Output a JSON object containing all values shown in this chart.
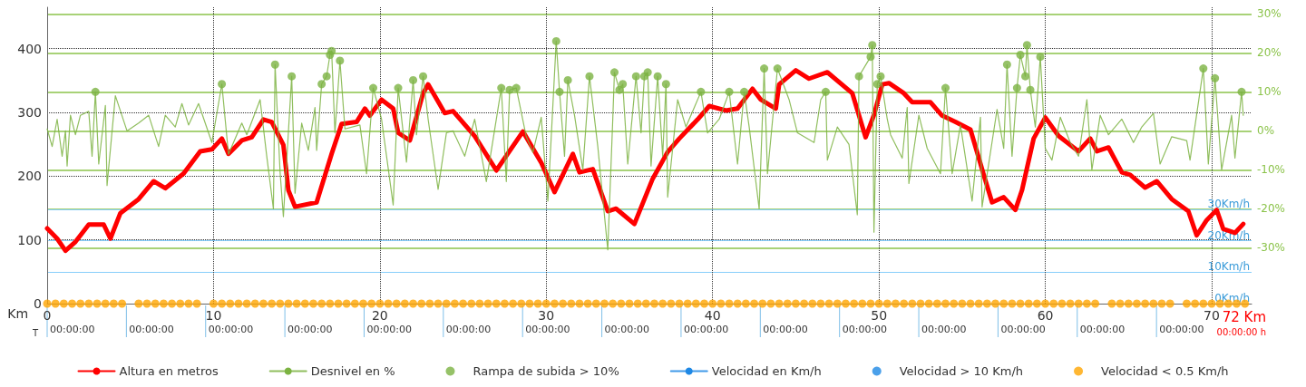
{
  "chart_data": {
    "type": "line",
    "xlabel": "Km",
    "x2label": "T",
    "xlim": [
      0,
      72.4
    ],
    "xticks": [
      0,
      10,
      20,
      30,
      40,
      50,
      60,
      70
    ],
    "ylim": [
      0,
      465
    ],
    "yticks": [
      0,
      100,
      200,
      300,
      400
    ],
    "y2lim": [
      -44.3,
      31.7
    ],
    "y2ticks": [
      {
        "value": -30,
        "label": "-30%"
      },
      {
        "value": -20,
        "label": "-20%"
      },
      {
        "value": -10,
        "label": "-10%"
      },
      {
        "value": 0,
        "label": "0%"
      },
      {
        "value": 10,
        "label": "10%"
      },
      {
        "value": 20,
        "label": "20%"
      },
      {
        "value": 30,
        "label": "30%"
      }
    ],
    "y3lim": [
      0,
      94.3
    ],
    "y3ticks": [
      {
        "value": 0,
        "label": "0Km/h"
      },
      {
        "value": 10,
        "label": "10Km/h"
      },
      {
        "value": 20,
        "label": "20Km/h"
      },
      {
        "value": 30,
        "label": "30Km/h"
      }
    ],
    "grid": true,
    "legend": "bottom",
    "annotations": [
      "72 Km",
      "00:00:00 h",
      "00:00:00",
      "00:00:00",
      "00:00:00",
      "00:00:00",
      "00:00:00",
      "00:00:00",
      "00:00:00",
      "00:00:00",
      "00:00:00",
      "00:00:00",
      "00:00:00",
      "00:00:00",
      "00:00:00",
      "00:00:00",
      "00:00:00"
    ],
    "series": [
      {
        "name": "Altura en metros",
        "color": "#ff0000",
        "x": [
          0,
          0.6,
          1.1,
          1.7,
          2.5,
          3.4,
          3.8,
          4.4,
          5.5,
          6.4,
          7.1,
          8.2,
          9.2,
          9.9,
          10.5,
          10.9,
          11.7,
          12.3,
          13.0,
          13.5,
          14.2,
          14.5,
          14.9,
          16.2,
          17.1,
          17.7,
          18.6,
          19.1,
          19.4,
          20.1,
          20.8,
          21.1,
          21.8,
          22.6,
          22.9,
          23.9,
          24.4,
          25.7,
          27.0,
          28.6,
          29.7,
          30.5,
          31.6,
          32.0,
          32.8,
          33.7,
          34.2,
          35.3,
          36.4,
          37.3,
          38.0,
          39.1,
          39.8,
          40.8,
          41.5,
          42.4,
          42.9,
          43.8,
          44.0,
          45.0,
          45.8,
          46.9,
          48.4,
          49.2,
          49.7,
          50.2,
          50.6,
          51.5,
          52.0,
          53.1,
          53.8,
          54.6,
          55.5,
          56.3,
          56.8,
          57.5,
          58.2,
          58.6,
          59.3,
          60.0,
          60.8,
          62.0,
          62.7,
          63.1,
          63.8,
          64.6,
          65.1,
          66.0,
          66.7,
          67.6,
          68.6,
          69.1,
          69.7,
          70.3,
          70.7,
          71.4,
          71.9
        ],
        "values": [
          118,
          102,
          83,
          97,
          124,
          124,
          102,
          142,
          164,
          192,
          181,
          204,
          239,
          242,
          259,
          235,
          256,
          261,
          289,
          285,
          249,
          178,
          152,
          159,
          235,
          282,
          285,
          306,
          295,
          320,
          306,
          268,
          256,
          330,
          344,
          299,
          302,
          263,
          209,
          270,
          221,
          175,
          235,
          206,
          211,
          145,
          149,
          125,
          196,
          238,
          259,
          289,
          310,
          303,
          306,
          337,
          320,
          306,
          344,
          366,
          353,
          363,
          330,
          261,
          296,
          344,
          346,
          330,
          316,
          316,
          295,
          285,
          273,
          202,
          159,
          167,
          147,
          178,
          259,
          292,
          263,
          239,
          259,
          239,
          245,
          206,
          202,
          182,
          192,
          164,
          145,
          107,
          131,
          147,
          117,
          111,
          125
        ]
      },
      {
        "name": "Desnivel en %",
        "axis": "y2",
        "color": "#7cb342",
        "x": [
          0,
          0.3,
          0.6,
          0.9,
          1.1,
          1.2,
          1.4,
          1.7,
          2.0,
          2.5,
          2.7,
          2.9,
          3.1,
          3.5,
          3.6,
          4.1,
          4.8,
          5.5,
          6.1,
          6.7,
          7.1,
          7.7,
          8.1,
          8.5,
          9.1,
          9.9,
          10.5,
          10.9,
          11.7,
          12.0,
          12.8,
          13.2,
          13.6,
          13.7,
          14.0,
          14.2,
          14.7,
          14.9,
          15.3,
          15.7,
          16.1,
          16.2,
          16.5,
          16.8,
          17.0,
          17.1,
          17.3,
          17.6,
          17.9,
          18.8,
          19.2,
          19.6,
          20.1,
          20.8,
          21.1,
          21.6,
          22.0,
          22.2,
          22.6,
          22.9,
          23.5,
          24.0,
          24.4,
          25.1,
          25.7,
          26.4,
          27.3,
          27.6,
          27.8,
          28.2,
          28.8,
          29.2,
          29.7,
          30.1,
          30.6,
          30.8,
          31.1,
          31.3,
          31.7,
          32.2,
          32.6,
          33.1,
          33.7,
          34.0,
          34.1,
          34.4,
          34.6,
          34.9,
          35.4,
          35.7,
          35.9,
          36.1,
          36.3,
          36.7,
          37.0,
          37.2,
          37.3,
          37.9,
          38.4,
          39.3,
          39.7,
          40.4,
          41.0,
          41.5,
          41.9,
          42.2,
          42.8,
          43.1,
          43.3,
          43.9,
          44.6,
          45.1,
          46.1,
          46.5,
          46.8,
          46.9,
          47.5,
          48.2,
          48.7,
          48.8,
          49.5,
          49.6,
          49.7,
          49.9,
          50.1,
          50.5,
          50.7,
          51.4,
          51.7,
          51.8,
          52.4,
          52.9,
          53.7,
          54.0,
          54.4,
          54.9,
          55.6,
          56.1,
          56.2,
          57.1,
          57.5,
          57.7,
          58.0,
          58.3,
          58.5,
          58.8,
          58.9,
          59.1,
          59.4,
          59.7,
          60.0,
          60.4,
          60.9,
          61.5,
          62.0,
          62.5,
          62.8,
          63.3,
          63.8,
          64.6,
          65.3,
          65.8,
          66.5,
          66.9,
          67.6,
          68.5,
          68.7,
          69.5,
          69.8,
          70.2,
          70.6,
          71.2,
          71.4,
          71.8,
          71.9
        ],
        "values": [
          0.5,
          -4,
          3,
          -6.5,
          0,
          -9,
          4,
          -1,
          4,
          5,
          -6.5,
          10,
          -8.5,
          6.5,
          -14,
          9,
          0,
          2,
          4,
          -4,
          4,
          1,
          7,
          1.5,
          7,
          -3,
          12,
          -6,
          2,
          -1,
          8,
          -6.5,
          -20,
          17,
          -10.5,
          -22,
          14,
          -16,
          2,
          -5,
          6,
          -5,
          12,
          14,
          19.5,
          20.5,
          -0.5,
          18,
          0.5,
          1.5,
          -11,
          11,
          3,
          -19,
          11,
          -8,
          13,
          -1,
          14,
          3,
          -15,
          -0.5,
          0,
          -6.5,
          3,
          -13,
          11,
          -13,
          10.5,
          11,
          -1.5,
          -5.5,
          3.5,
          -18,
          23,
          10,
          -6.5,
          13,
          4,
          -10,
          14,
          -4,
          -30.5,
          3,
          15,
          10.5,
          12,
          -8.5,
          14,
          -0.5,
          14,
          15,
          -9,
          14,
          -6.5,
          12,
          -17,
          8,
          1,
          10,
          -0.5,
          3,
          10,
          -8.5,
          10,
          1,
          -20,
          16,
          -11,
          16,
          8,
          -0.5,
          -3,
          8,
          10,
          -7.5,
          1,
          -3.5,
          -21.5,
          14,
          19,
          22,
          -26,
          12,
          14,
          3,
          -1,
          -7,
          6,
          -13.5,
          4,
          -4.5,
          -11,
          11,
          -11,
          1.5,
          -18,
          3.5,
          -19.5,
          5.5,
          -4.5,
          17,
          -6.5,
          11,
          19.5,
          14,
          22,
          10.5,
          1,
          19,
          -4.5,
          -7.5,
          3.5,
          -3,
          -6.5,
          8,
          -10,
          4,
          -1,
          3,
          -3,
          1,
          4.5,
          -8.5,
          -1.5,
          -2.5,
          -7.5,
          16,
          -8.5,
          13.5,
          -10,
          4,
          -7,
          10,
          4
        ]
      },
      {
        "name": "Rampa de subida > 10%",
        "type": "scatter",
        "axis": "y2",
        "color": "#7cb342",
        "x": [
          2.9,
          10.5,
          13.7,
          14.7,
          16.5,
          16.8,
          17.0,
          17.1,
          17.6,
          19.6,
          21.1,
          22.0,
          22.6,
          27.3,
          27.8,
          28.2,
          30.6,
          30.8,
          31.3,
          32.6,
          34.1,
          34.4,
          34.6,
          35.4,
          35.9,
          36.1,
          36.7,
          37.2,
          39.3,
          41.0,
          41.9,
          43.1,
          43.9,
          46.8,
          48.8,
          49.5,
          49.6,
          49.9,
          50.1,
          54.0,
          57.7,
          58.3,
          58.5,
          58.8,
          58.9,
          59.1,
          59.7,
          69.5,
          70.2,
          71.8
        ],
        "values": [
          10,
          12,
          17,
          14,
          12,
          14,
          19.5,
          20.5,
          18,
          11,
          11,
          13,
          14,
          11,
          10.5,
          11,
          23,
          10,
          13,
          14,
          15,
          10.5,
          12,
          14,
          14,
          15,
          14,
          12,
          10,
          10,
          10,
          16,
          16,
          10,
          14,
          19,
          22,
          12,
          14,
          11,
          17,
          11,
          19.5,
          14,
          22,
          10.5,
          19,
          16,
          13.5,
          10
        ]
      },
      {
        "name": "Velocidad en Km/h",
        "type": "line",
        "axis": "y3",
        "color": "#1e88e5"
      },
      {
        "name": "Velocidad > 10 Km/h",
        "type": "scatter",
        "axis": "y3",
        "color": "#1e88e5"
      },
      {
        "name": "Velocidad < 0.5 Km/h",
        "type": "scatter",
        "axis": "y3",
        "color": "#ffa500",
        "x": [
          0,
          0.5,
          1,
          1.5,
          2,
          2.5,
          3,
          3.5,
          4,
          4.5,
          5.5,
          6,
          6.5,
          7,
          7.5,
          8,
          8.5,
          9,
          10,
          10.5,
          11,
          11.5,
          12,
          12.5,
          13,
          13.5,
          14,
          14.5,
          15,
          15.5,
          16,
          16.5,
          17,
          17.5,
          18,
          18.5,
          19,
          19.5,
          20,
          20.5,
          21,
          21.5,
          22,
          22.5,
          23,
          23.5,
          24,
          24.5,
          25,
          25.5,
          26,
          26.5,
          27,
          27.5,
          28,
          28.5,
          29,
          29.5,
          30,
          30.5,
          31,
          31.5,
          32,
          32.5,
          33,
          33.5,
          34,
          34.5,
          35,
          35.5,
          36,
          36.5,
          37,
          37.5,
          38,
          38.5,
          39,
          39.5,
          40,
          40.5,
          41,
          41.5,
          42,
          42.5,
          43,
          43.5,
          44,
          44.5,
          45,
          45.5,
          46,
          46.5,
          47,
          47.5,
          48,
          48.5,
          49,
          49.5,
          50,
          50.5,
          51,
          51.5,
          52,
          52.5,
          53,
          53.5,
          54,
          54.5,
          55,
          55.5,
          56,
          56.5,
          57,
          57.5,
          58,
          58.5,
          59,
          59.5,
          60,
          60.5,
          61,
          61.5,
          62,
          62.5,
          63,
          64,
          64.5,
          65,
          65.5,
          66,
          66.5,
          67,
          67.5,
          68.5,
          69,
          69.5,
          70,
          70.5,
          71,
          71.5,
          72
        ],
        "values": [
          0,
          0,
          0,
          0,
          0,
          0,
          0,
          0,
          0,
          0,
          0,
          0,
          0,
          0,
          0,
          0,
          0,
          0,
          0,
          0,
          0,
          0,
          0,
          0,
          0,
          0,
          0,
          0,
          0,
          0,
          0,
          0,
          0,
          0,
          0,
          0,
          0,
          0,
          0,
          0,
          0,
          0,
          0,
          0,
          0,
          0,
          0,
          0,
          0,
          0,
          0,
          0,
          0,
          0,
          0,
          0,
          0,
          0,
          0,
          0,
          0,
          0,
          0,
          0,
          0,
          0,
          0,
          0,
          0,
          0,
          0,
          0,
          0,
          0,
          0,
          0,
          0,
          0,
          0,
          0,
          0,
          0,
          0,
          0,
          0,
          0,
          0,
          0,
          0,
          0,
          0,
          0,
          0,
          0,
          0,
          0,
          0,
          0,
          0,
          0,
          0,
          0,
          0,
          0,
          0,
          0,
          0,
          0,
          0,
          0,
          0,
          0,
          0,
          0,
          0,
          0,
          0,
          0,
          0,
          0,
          0,
          0,
          0,
          0,
          0,
          0,
          0,
          0,
          0,
          0,
          0,
          0,
          0,
          0,
          0,
          0,
          0,
          0,
          0,
          0,
          0
        ]
      }
    ]
  }
}
